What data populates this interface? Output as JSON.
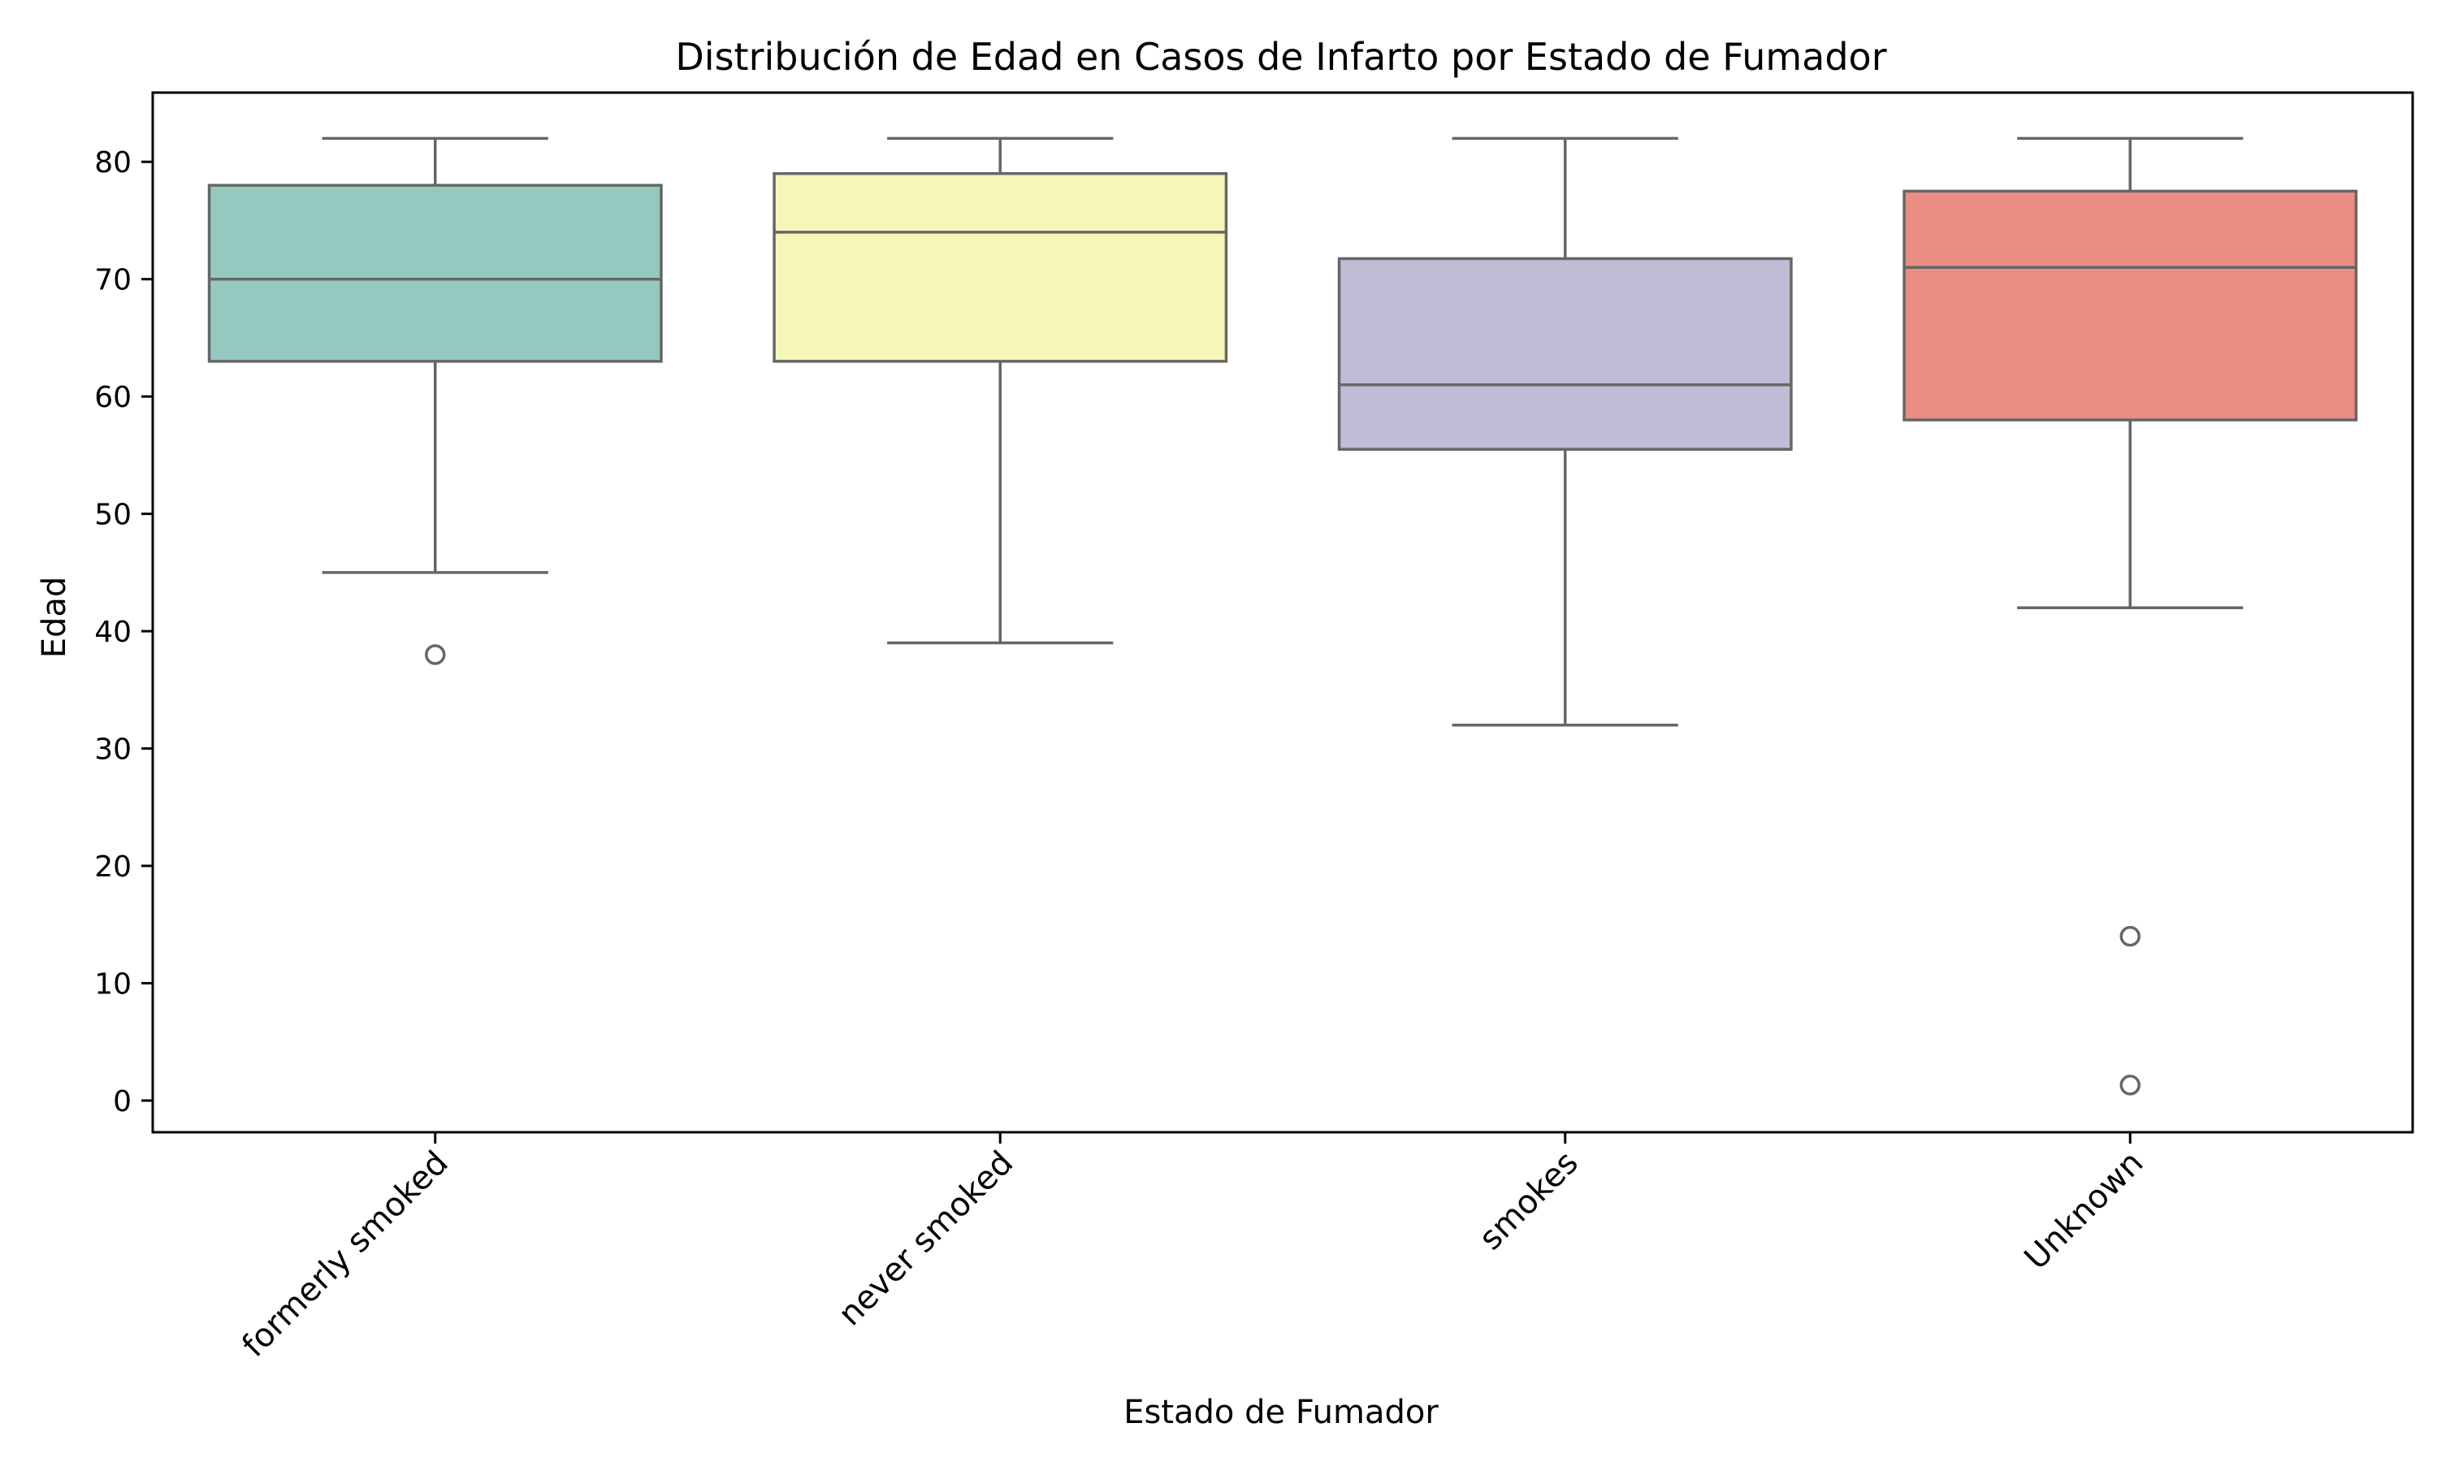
{
  "chart_data": {
    "type": "box",
    "title": "Distribución de Edad en Casos de Infarto por Estado de Fumador",
    "xlabel": "Estado de Fumador",
    "ylabel": "Edad",
    "ylim": [
      -2.7,
      85.9
    ],
    "yticks": [
      0,
      10,
      20,
      30,
      40,
      50,
      60,
      70,
      80
    ],
    "grid": false,
    "legend": "none",
    "categories": [
      "formerly smoked",
      "never smoked",
      "smokes",
      "Unknown"
    ],
    "boxes": [
      {
        "category": "formerly smoked",
        "color": "#95c9bf",
        "whisker_low": 45,
        "q1": 63,
        "median": 70,
        "q3": 78,
        "whisker_high": 82,
        "outliers": [
          38
        ]
      },
      {
        "category": "never smoked",
        "color": "#f6f6b9",
        "whisker_low": 39,
        "q1": 63,
        "median": 74,
        "q3": 79,
        "whisker_high": 82,
        "outliers": []
      },
      {
        "category": "smokes",
        "color": "#c0bcd6",
        "whisker_low": 32,
        "q1": 55.5,
        "median": 61,
        "q3": 71.75,
        "whisker_high": 82,
        "outliers": []
      },
      {
        "category": "Unknown",
        "color": "#ea8e83",
        "whisker_low": 42,
        "q1": 58,
        "median": 71,
        "q3": 77.5,
        "whisker_high": 82,
        "outliers": [
          14,
          1.32
        ]
      }
    ],
    "line_color": "#666666"
  }
}
